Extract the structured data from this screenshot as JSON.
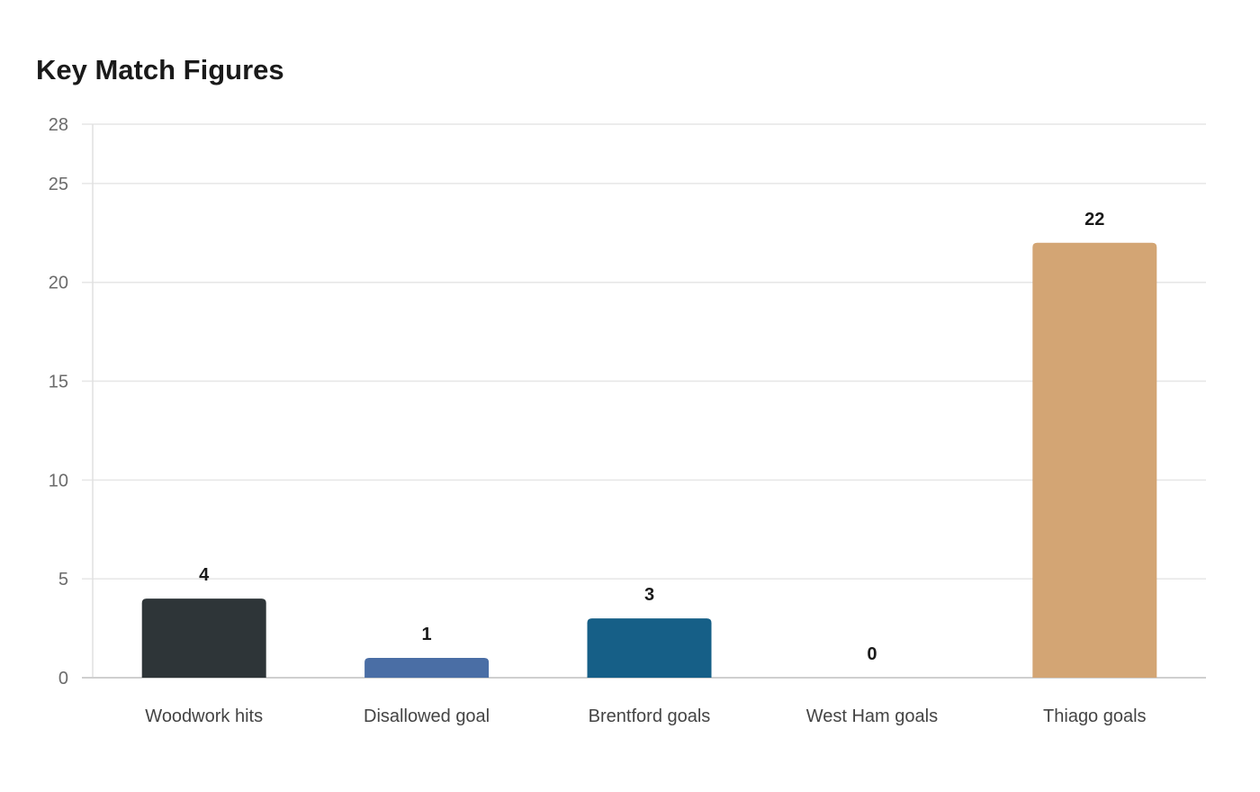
{
  "chart_data": {
    "type": "bar",
    "title": "Key Match Figures",
    "xlabel": "",
    "ylabel": "",
    "categories": [
      "Woodwork hits",
      "Disallowed goal",
      "Brentford goals",
      "West Ham goals",
      "Thiago goals"
    ],
    "values": [
      4,
      1,
      3,
      0,
      22
    ],
    "colors": [
      "#2e3538",
      "#4a6ea5",
      "#165f87",
      "#c0392b",
      "#d3a574"
    ],
    "ylim": [
      0,
      28
    ],
    "yticks": [
      0,
      5,
      10,
      15,
      20,
      25,
      28
    ],
    "grid": true,
    "legend": "none",
    "value_labels": true
  }
}
